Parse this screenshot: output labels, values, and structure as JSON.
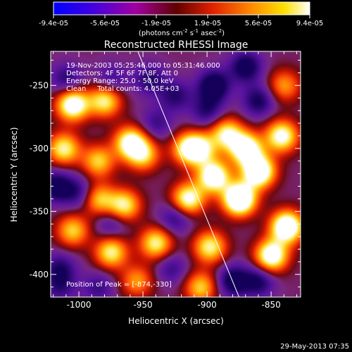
{
  "colorbar": {
    "tick_labels": [
      "-9.4e-05",
      "-5.6e-05",
      "-1.9e-05",
      "1.9e-05",
      "5.6e-05",
      "9.4e-05"
    ],
    "unit_main": "(photons cm",
    "unit_exp1": "-2",
    "unit_s": " s",
    "unit_exp2": "-1",
    "unit_asec": " asec",
    "unit_exp3": "-2",
    "unit_close": ")"
  },
  "info": {
    "line1": "19-Nov-2003 05:25:46.000 to 05:31:46.000",
    "line2": "Detectors: 4F 5F 6F 7F 8F, Att 0",
    "line3": "Energy Range: 25.0 - 50.0 keV",
    "line4": "Clean     Total counts: 4.05E+03",
    "peak": "Position of Peak = [-874,-330]"
  },
  "footer": {
    "timestamp": "29-May-2013 07:35"
  },
  "chart_data": {
    "type": "heatmap",
    "title": "Reconstructed RHESSI Image",
    "xlabel": "Heliocentric X (arcsec)",
    "ylabel": "Heliocentric Y (arcsec)",
    "xlim": [
      -1022,
      -827
    ],
    "ylim": [
      -418,
      -223
    ],
    "xticks": [
      -1000,
      -950,
      -900,
      -850
    ],
    "yticks": [
      -400,
      -350,
      -300,
      -250
    ],
    "xtick_labels": [
      "-1000",
      "-950",
      "-900",
      "-850"
    ],
    "ytick_labels": [
      "-400",
      "-350",
      "-300",
      "-250"
    ],
    "value_range": [
      -9.4e-05,
      9.4e-05
    ],
    "colormap": [
      "#000080",
      "#4020d0",
      "#8030a0",
      "#a01010",
      "#e02000",
      "#ff6010",
      "#ffb000",
      "#ffff60",
      "#ffffff"
    ],
    "limb_line": {
      "points": [
        [
          -954,
          -223
        ],
        [
          -875,
          -418
        ]
      ]
    },
    "peak": [
      -874,
      -330
    ],
    "hotspots": [
      [
        -1005,
        -265,
        0.8
      ],
      [
        -980,
        -262,
        0.6
      ],
      [
        -1012,
        -300,
        0.6
      ],
      [
        -985,
        -310,
        0.5
      ],
      [
        -960,
        -295,
        0.7
      ],
      [
        -950,
        -305,
        0.5
      ],
      [
        -985,
        -340,
        0.5
      ],
      [
        -965,
        -345,
        0.6
      ],
      [
        -1005,
        -365,
        0.5
      ],
      [
        -975,
        -382,
        0.6
      ],
      [
        -940,
        -375,
        0.6
      ],
      [
        -955,
        -405,
        0.4
      ],
      [
        -915,
        -340,
        0.7
      ],
      [
        -895,
        -322,
        0.8
      ],
      [
        -875,
        -340,
        1.0
      ],
      [
        -860,
        -318,
        0.9
      ],
      [
        -870,
        -300,
        0.8
      ],
      [
        -885,
        -288,
        0.6
      ],
      [
        -842,
        -290,
        0.7
      ],
      [
        -905,
        -300,
        0.5
      ],
      [
        -838,
        -362,
        0.9
      ],
      [
        -850,
        -385,
        0.8
      ],
      [
        -898,
        -378,
        0.6
      ],
      [
        -915,
        -300,
        0.6
      ],
      [
        -840,
        -250,
        0.4
      ],
      [
        -905,
        -410,
        0.5
      ]
    ],
    "coldspots": [
      [
        -1010,
        -245,
        0.5
      ],
      [
        -975,
        -245,
        0.4
      ],
      [
        -1018,
        -330,
        0.7
      ],
      [
        -1000,
        -335,
        0.5
      ],
      [
        -975,
        -360,
        0.4
      ],
      [
        -1015,
        -395,
        0.5
      ],
      [
        -1015,
        -410,
        0.4
      ],
      [
        -985,
        -410,
        0.4
      ],
      [
        -895,
        -250,
        0.8
      ],
      [
        -870,
        -235,
        0.7
      ],
      [
        -860,
        -262,
        0.6
      ],
      [
        -900,
        -270,
        0.5
      ],
      [
        -925,
        -258,
        0.5
      ],
      [
        -940,
        -280,
        0.4
      ],
      [
        -925,
        -355,
        0.5
      ],
      [
        -880,
        -405,
        0.7
      ],
      [
        -860,
        -405,
        0.6
      ],
      [
        -945,
        -245,
        0.5
      ],
      [
        -928,
        -395,
        0.4
      ]
    ]
  }
}
